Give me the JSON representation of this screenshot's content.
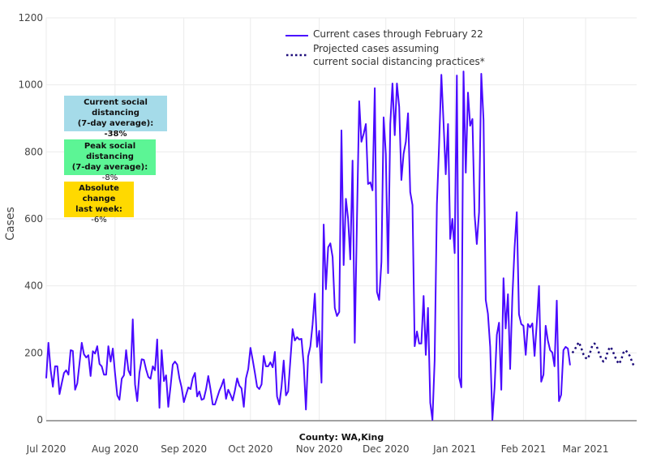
{
  "chart_data": {
    "type": "line",
    "xlabel": "County: WA,King",
    "ylabel": "Cases",
    "xlim": [
      "2020-07-01",
      "2021-03-24"
    ],
    "ylim": [
      0,
      1200
    ],
    "y_ticks": [
      0,
      200,
      400,
      600,
      800,
      1000,
      1200
    ],
    "x_ticks": [
      {
        "date": "2020-07-01",
        "label": "Jul 2020"
      },
      {
        "date": "2020-08-01",
        "label": "Aug 2020"
      },
      {
        "date": "2020-09-01",
        "label": "Sep 2020"
      },
      {
        "date": "2020-10-01",
        "label": "Oct 2020"
      },
      {
        "date": "2020-11-01",
        "label": "Nov 2020"
      },
      {
        "date": "2020-12-01",
        "label": "Dec 2020"
      },
      {
        "date": "2021-01-01",
        "label": "Jan 2021"
      },
      {
        "date": "2021-02-01",
        "label": "Feb 2021"
      },
      {
        "date": "2021-03-01",
        "label": "Mar 2021"
      }
    ],
    "grid": true,
    "legend_placement": "top-center",
    "series": [
      {
        "name": "Current cases through February 22",
        "style": "solid",
        "color": "#4a0aff",
        "daily_values_by_month": [
          {
            "month": "2020-07",
            "start_day": 1,
            "values": [
              124,
              230,
              148,
              99,
              160,
              160,
              77,
              110,
              140,
              148,
              135,
              208,
              206,
              90,
              109,
              170,
              230,
              196,
              186,
              193,
              131,
              205,
              198,
              220,
              167,
              160,
              135,
              135,
              220,
              174,
              213
            ]
          },
          {
            "month": "2020-08",
            "start_day": 1,
            "values": [
              140,
              73,
              60,
              123,
              133,
              208,
              148,
              133,
              300,
              106,
              56,
              140,
              181,
              179,
              150,
              128,
              123,
              160,
              148,
              240,
              36,
              208,
              116,
              133,
              39,
              100,
              165,
              174,
              165,
              124,
              97
            ]
          },
          {
            "month": "2020-09",
            "start_day": 1,
            "values": [
              53,
              75,
              97,
              92,
              124,
              140,
              70,
              85,
              60,
              63,
              92,
              131,
              92,
              46,
              46,
              66,
              87,
              102,
              121,
              63,
              90,
              75,
              58,
              87,
              124,
              102,
              94,
              39,
              124,
              152
            ]
          },
          {
            "month": "2020-10",
            "start_day": 1,
            "values": [
              215,
              180,
              140,
              99,
              92,
              106,
              191,
              160,
              160,
              172,
              157,
              203,
              70,
              46,
              99,
              177,
              73,
              85,
              181,
              271,
              237,
              247,
              240,
              242,
              165,
              31,
              189,
              220,
              285,
              377,
              218
            ]
          },
          {
            "month": "2020-11",
            "start_day": 1,
            "values": [
              266,
              111,
              583,
              390,
              515,
              527,
              486,
              334,
              310,
              322,
              864,
              462,
              660,
              600,
              479,
              774,
              230,
              607,
              951,
              830,
              854,
              883,
              704,
              709,
              685,
              990,
              382,
              358,
              472,
              903
            ]
          },
          {
            "month": "2020-12",
            "start_day": 1,
            "values": [
              794,
              438,
              883,
              1004,
              850,
              1004,
              934,
              716,
              794,
              830,
              915,
              680,
              641,
              220,
              264,
              228,
              228,
              370,
              194,
              334,
              51,
              0,
              177,
              644,
              822,
              1030,
              886,
              733,
              883,
              540,
              600
            ]
          },
          {
            "month": "2021-01",
            "start_day": 1,
            "values": [
              498,
              1028,
              128,
              97,
              1040,
              738,
              977,
              878,
              898,
              612,
              525,
              620,
              1033,
              895,
              358,
              317,
              218,
              0,
              97,
              254,
              290,
              90,
              423,
              273,
              375,
              152,
              365,
              515,
              620,
              315,
              286
            ]
          },
          {
            "month": "2021-02",
            "start_day": 1,
            "values": [
              281,
              194,
              286,
              276,
              288,
              191,
              286,
              400,
              114,
              135,
              281,
              237,
              208,
              201,
              160,
              356,
              56,
              75,
              208,
              218,
              213,
              163
            ]
          }
        ]
      },
      {
        "name": "Projected cases assuming current social distancing practices*",
        "style": "dotted",
        "color": "#1c0b7a",
        "daily_values_by_month": [
          {
            "month": "2021-02",
            "start_day": 23,
            "values": [
              200,
              208,
              222,
              232,
              215,
              196
            ]
          },
          {
            "month": "2021-03",
            "start_day": 1,
            "values": [
              185,
              182,
              200,
              222,
              228,
              220,
              200,
              184,
              174,
              182,
              205,
              218,
              210,
              192,
              177,
              167,
              178,
              200,
              208,
              200,
              190,
              172,
              157
            ]
          }
        ]
      }
    ],
    "legend": {
      "entry1": "Current cases through February 22",
      "entry2_line1": "Projected cases assuming",
      "entry2_line2": "current social distancing practices*"
    },
    "annotations": [
      {
        "title1": "Current social distancing",
        "title2": "(7-day average):",
        "value": "-38%",
        "color": "#a5dbe9"
      },
      {
        "title1": "Peak social distancing",
        "title2": "(7-day average):",
        "value": "-8%",
        "color": "#5cf595"
      },
      {
        "title1": "Absolute change",
        "title2": "last week:",
        "value": "-6%",
        "color": "#ffd900"
      }
    ]
  }
}
